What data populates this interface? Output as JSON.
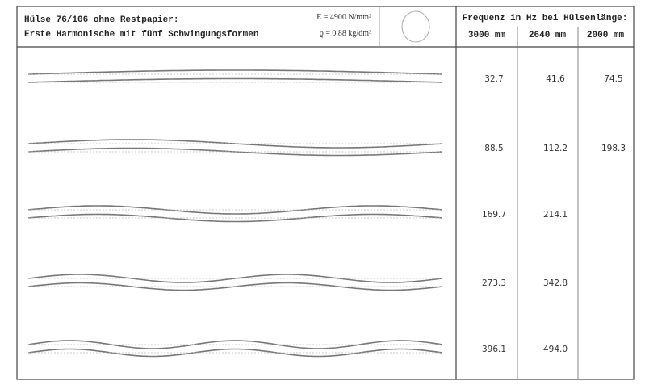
{
  "header": {
    "title": "Hülse 76/106 ohne Restpapier:",
    "subtitle": "Erste Harmonische mit fünf Schwingungsformen",
    "formula_e": "E = 4900 N/mm²",
    "formula_rho": "ϱ = 0.88 kg/dm³"
  },
  "table": {
    "title": "Frequenz in Hz bei Hülsenlänge:",
    "columns": [
      "3000 mm",
      "2640 mm",
      "2000 mm"
    ],
    "rows": [
      [
        "32.7",
        "41.6",
        "74.5"
      ],
      [
        "88.5",
        "112.2",
        "198.3"
      ],
      [
        "169.7",
        "214.1"
      ],
      [
        "273.3",
        "342.8"
      ],
      [
        "396.1",
        "494.0"
      ]
    ]
  }
}
